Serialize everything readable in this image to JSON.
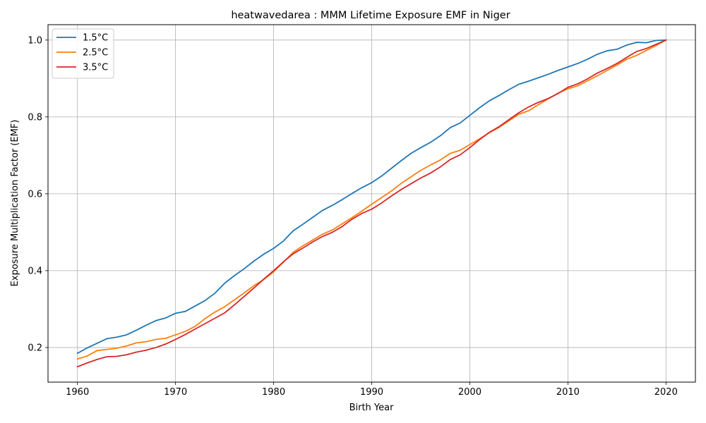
{
  "chart_data": {
    "type": "line",
    "title": "heatwavedarea : MMM Lifetime Exposure EMF in Niger",
    "xlabel": "Birth Year",
    "ylabel": "Exposure Multiplication Factor (EMF)",
    "xlim": [
      1957,
      2023
    ],
    "ylim": [
      0.11,
      1.04
    ],
    "xticks": [
      1960,
      1970,
      1980,
      1990,
      2000,
      2010,
      2020
    ],
    "yticks": [
      0.2,
      0.4,
      0.6,
      0.8,
      1.0
    ],
    "xtick_labels": [
      "1960",
      "1970",
      "1980",
      "1990",
      "2000",
      "2010",
      "2020"
    ],
    "ytick_labels": [
      "0.2",
      "0.4",
      "0.6",
      "0.8",
      "1.0"
    ],
    "grid": true,
    "legend_position": "upper-left",
    "x": [
      1960,
      1961,
      1962,
      1963,
      1964,
      1965,
      1966,
      1967,
      1968,
      1969,
      1970,
      1971,
      1972,
      1973,
      1974,
      1975,
      1976,
      1977,
      1978,
      1979,
      1980,
      1981,
      1982,
      1983,
      1984,
      1985,
      1986,
      1987,
      1988,
      1989,
      1990,
      1991,
      1992,
      1993,
      1994,
      1995,
      1996,
      1997,
      1998,
      1999,
      2000,
      2001,
      2002,
      2003,
      2004,
      2005,
      2006,
      2007,
      2008,
      2009,
      2010,
      2011,
      2012,
      2013,
      2014,
      2015,
      2016,
      2017,
      2018,
      2019,
      2020
    ],
    "series": [
      {
        "name": "1.5°C",
        "color": "#1f77b4",
        "values": [
          0.185,
          0.199,
          0.211,
          0.223,
          0.227,
          0.233,
          0.245,
          0.258,
          0.27,
          0.277,
          0.289,
          0.294,
          0.308,
          0.322,
          0.341,
          0.367,
          0.387,
          0.405,
          0.425,
          0.443,
          0.458,
          0.477,
          0.504,
          0.521,
          0.539,
          0.557,
          0.57,
          0.585,
          0.601,
          0.616,
          0.629,
          0.646,
          0.666,
          0.686,
          0.705,
          0.72,
          0.734,
          0.751,
          0.772,
          0.784,
          0.804,
          0.824,
          0.842,
          0.856,
          0.871,
          0.885,
          0.893,
          0.902,
          0.911,
          0.921,
          0.93,
          0.939,
          0.95,
          0.963,
          0.972,
          0.976,
          0.987,
          0.994,
          0.993,
          0.999,
          1.0
        ]
      },
      {
        "name": "2.5°C",
        "color": "#ff7f0e",
        "values": [
          0.17,
          0.178,
          0.192,
          0.195,
          0.198,
          0.204,
          0.212,
          0.215,
          0.221,
          0.224,
          0.233,
          0.242,
          0.255,
          0.275,
          0.292,
          0.306,
          0.324,
          0.342,
          0.361,
          0.377,
          0.397,
          0.422,
          0.448,
          0.465,
          0.48,
          0.495,
          0.506,
          0.522,
          0.538,
          0.555,
          0.573,
          0.59,
          0.607,
          0.627,
          0.644,
          0.661,
          0.675,
          0.688,
          0.705,
          0.713,
          0.728,
          0.743,
          0.759,
          0.773,
          0.79,
          0.807,
          0.816,
          0.832,
          0.847,
          0.862,
          0.873,
          0.881,
          0.894,
          0.907,
          0.921,
          0.935,
          0.95,
          0.96,
          0.973,
          0.986,
          1.0
        ]
      },
      {
        "name": "3.5°C",
        "color": "#d62728",
        "values": [
          0.15,
          0.16,
          0.169,
          0.176,
          0.177,
          0.181,
          0.188,
          0.193,
          0.2,
          0.209,
          0.221,
          0.234,
          0.248,
          0.262,
          0.276,
          0.29,
          0.311,
          0.333,
          0.355,
          0.378,
          0.4,
          0.423,
          0.444,
          0.459,
          0.475,
          0.489,
          0.5,
          0.515,
          0.534,
          0.549,
          0.56,
          0.576,
          0.594,
          0.611,
          0.626,
          0.641,
          0.654,
          0.67,
          0.689,
          0.701,
          0.72,
          0.741,
          0.76,
          0.775,
          0.793,
          0.811,
          0.826,
          0.838,
          0.848,
          0.861,
          0.877,
          0.886,
          0.899,
          0.914,
          0.926,
          0.939,
          0.955,
          0.97,
          0.978,
          0.989,
          1.0
        ]
      }
    ]
  }
}
